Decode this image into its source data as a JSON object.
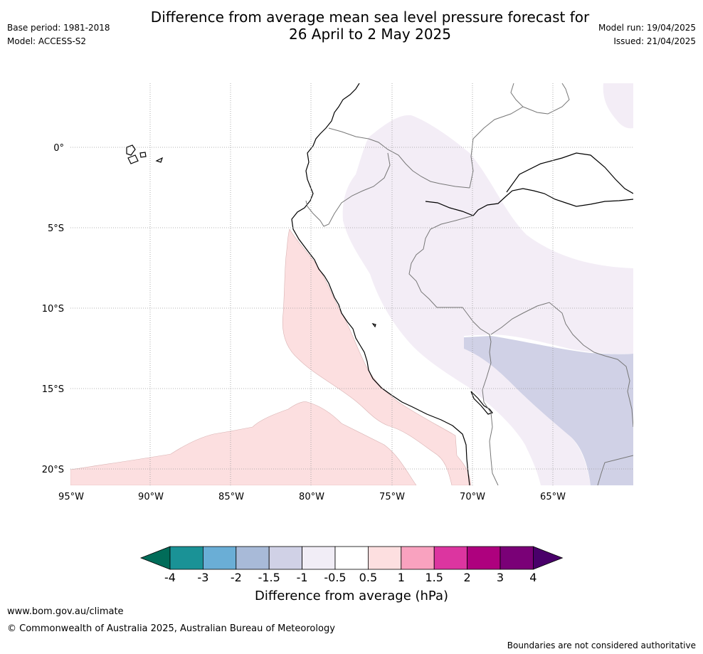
{
  "header": {
    "title_line1": "Difference from average mean sea level pressure forecast for",
    "title_line2": "26 April to 2 May 2025",
    "base_period": "Base period: 1981-2018",
    "model": "Model: ACCESS-S2",
    "model_run": "Model run: 19/04/2025",
    "issued": "Issued: 21/04/2025"
  },
  "map": {
    "lon_labels": [
      "95°W",
      "90°W",
      "85°W",
      "80°W",
      "75°W",
      "70°W",
      "65°W"
    ],
    "lat_labels": [
      "0°",
      "5°S",
      "10°S",
      "15°S",
      "20°S"
    ],
    "lon_range": [
      -95,
      -60
    ],
    "lat_range": [
      -21,
      4
    ],
    "gridlines": true
  },
  "colorbar": {
    "ticks": [
      "-4",
      "-3",
      "-2",
      "-1.5",
      "-1",
      "-0.5",
      "0.5",
      "1",
      "1.5",
      "2",
      "3",
      "4"
    ],
    "colors": [
      "#1a9296",
      "#6aaed6",
      "#a8bad8",
      "#d0d1e6",
      "#f1edf6",
      "#ffffff",
      "#fddfe0",
      "#f9a2bf",
      "#dc35a0",
      "#ae017e",
      "#7a0177"
    ],
    "under_color": "#016c59",
    "over_color": "#49006a",
    "label": "Difference from average (hPa)"
  },
  "footer": {
    "website": "www.bom.gov.au/climate",
    "copyright": "© Commonwealth of Australia 2025, Australian Bureau of Meteorology",
    "disclaimer": "Boundaries are not considered authoritative"
  }
}
